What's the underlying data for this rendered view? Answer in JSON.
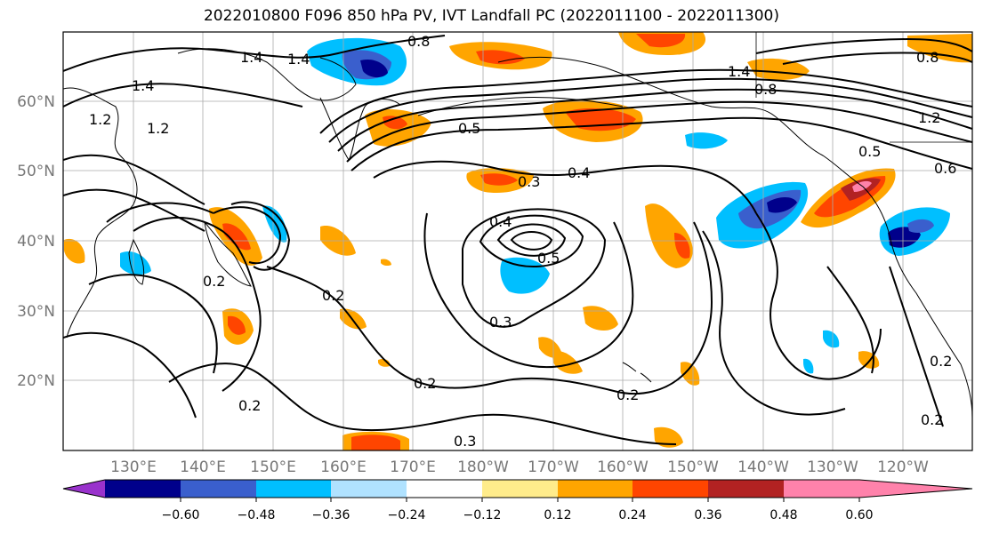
{
  "title": "2022010800 F096 850 hPa PV, IVT Landfall PC (2022011100 - 2022011300)",
  "lat_labels": [
    "60°N",
    "50°N",
    "40°N",
    "30°N",
    "20°N"
  ],
  "lon_labels": [
    "130°E",
    "140°E",
    "150°E",
    "160°E",
    "170°E",
    "180°W",
    "170°W",
    "160°W",
    "150°W",
    "140°W",
    "130°W",
    "120°W"
  ],
  "colorbar": {
    "colors": [
      "#9932cc",
      "#00008b",
      "#3a5fcd",
      "#00bfff",
      "#b0e2ff",
      "#ffffff",
      "#ffec8b",
      "#ffa500",
      "#ff4500",
      "#b22222",
      "#ff82ab"
    ],
    "tick_labels": [
      "−0.60",
      "−0.48",
      "−0.36",
      "−0.24",
      "−0.12",
      "0.12",
      "0.24",
      "0.36",
      "0.48",
      "0.60"
    ]
  },
  "contour_labels": [
    {
      "text": "1.4"
    },
    {
      "text": "1.4"
    },
    {
      "text": "1.4"
    },
    {
      "text": "1.2"
    },
    {
      "text": "1.2"
    },
    {
      "text": "0.8"
    },
    {
      "text": "0.5"
    },
    {
      "text": "0.4"
    },
    {
      "text": "0.3"
    },
    {
      "text": "0.4"
    },
    {
      "text": "0.5"
    },
    {
      "text": "0.2"
    },
    {
      "text": "0.3"
    },
    {
      "text": "0.2"
    },
    {
      "text": "0.2"
    },
    {
      "text": "0.2"
    },
    {
      "text": "0.3"
    },
    {
      "text": "0.2"
    },
    {
      "text": "1.4"
    },
    {
      "text": "0.8"
    },
    {
      "text": "0.5"
    },
    {
      "text": "0.6"
    },
    {
      "text": "0.2"
    },
    {
      "text": "0.2"
    },
    {
      "text": "1.2"
    },
    {
      "text": "0.8"
    }
  ]
}
